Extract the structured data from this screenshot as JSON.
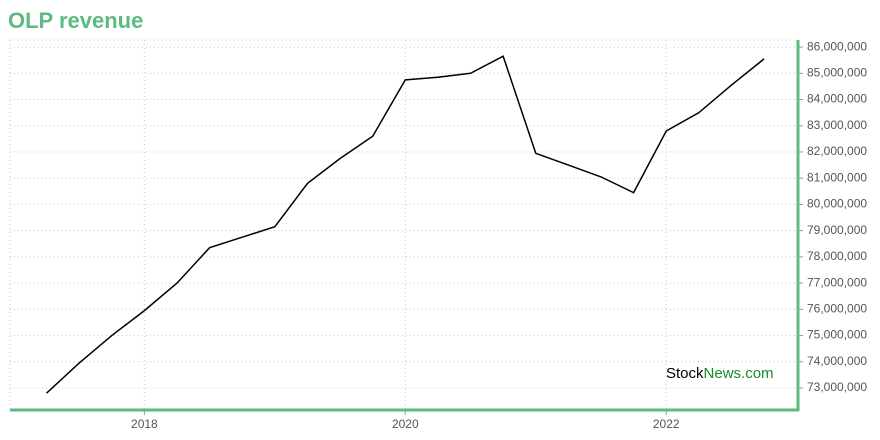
{
  "chart_data": {
    "type": "line",
    "title": "OLP revenue",
    "watermark": {
      "part1": "Stock",
      "part2": "News.com"
    },
    "x": [
      2017.25,
      2017.5,
      2017.75,
      2018,
      2018.25,
      2018.5,
      2018.75,
      2019,
      2019.25,
      2019.5,
      2019.75,
      2020,
      2020.25,
      2020.5,
      2020.75,
      2021,
      2021.25,
      2021.5,
      2021.75,
      2022,
      2022.25,
      2022.5,
      2022.75
    ],
    "series": [
      {
        "color": "#000000",
        "values": [
          72800000,
          73950000,
          75000000,
          75950000,
          77000000,
          78350000,
          78750000,
          79150000,
          80800000,
          81750000,
          82600000,
          84750000,
          84850000,
          85000000,
          85650000,
          81950000,
          81500000,
          81050000,
          80450000,
          82800000,
          83500000,
          84550000,
          85550000
        ]
      }
    ],
    "xlim": [
      2016.97,
      2023.01
    ],
    "xticks": [
      2018,
      2020,
      2022
    ],
    "ylim": [
      72160000,
      86270000
    ],
    "yticks": [
      {
        "value": 73000000,
        "label": "73,000,000"
      },
      {
        "value": 74000000,
        "label": "74,000,000"
      },
      {
        "value": 75000000,
        "label": "75,000,000"
      },
      {
        "value": 76000000,
        "label": "76,000,000"
      },
      {
        "value": 77000000,
        "label": "77,000,000"
      },
      {
        "value": 78000000,
        "label": "78,000,000"
      },
      {
        "value": 79000000,
        "label": "79,000,000"
      },
      {
        "value": 80000000,
        "label": "80,000,000"
      },
      {
        "value": 81000000,
        "label": "81,000,000"
      },
      {
        "value": 82000000,
        "label": "82,000,000"
      },
      {
        "value": 83000000,
        "label": "83,000,000"
      },
      {
        "value": 84000000,
        "label": "84,000,000"
      },
      {
        "value": 85000000,
        "label": "85,000,000"
      },
      {
        "value": 86000000,
        "label": "86,000,000"
      }
    ],
    "grid": true,
    "axis_color": "#5dbb82"
  }
}
